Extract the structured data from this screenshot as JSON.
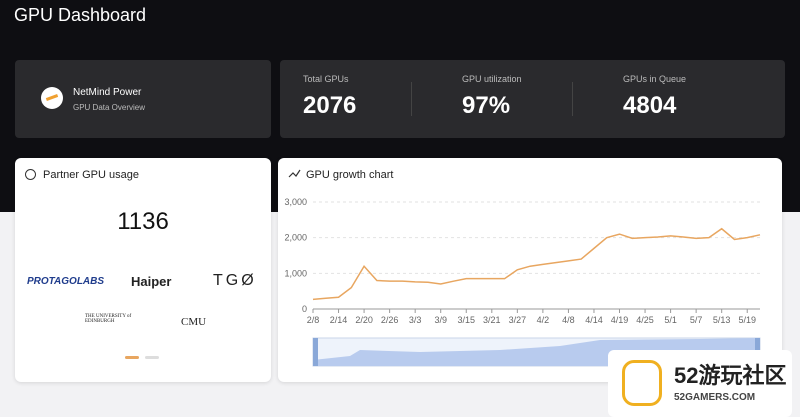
{
  "header": {
    "title": "GPU Dashboard"
  },
  "brand": {
    "name": "NetMind Power",
    "subtitle": "GPU Data Overview"
  },
  "stats": [
    {
      "label": "Total GPUs",
      "value": "2076"
    },
    {
      "label": "GPU utilization",
      "value": "97%"
    },
    {
      "label": "GPUs in Queue",
      "value": "4804"
    }
  ],
  "partner_usage": {
    "title": "Partner GPU usage",
    "total": "1136",
    "partners": [
      "PROTAGOLABS",
      "Haiper",
      "TGØ",
      "THE UNIVERSITY of EDINBURGH",
      "CMU"
    ]
  },
  "growth_chart": {
    "type": "line",
    "title": "GPU growth chart",
    "color": "#e8a660",
    "categories": [
      "2/8",
      null,
      "2/14",
      null,
      "2/20",
      null,
      "2/26",
      null,
      "3/3",
      null,
      "3/9",
      null,
      "3/15",
      null,
      "3/21",
      null,
      "3/27",
      null,
      "4/2",
      null,
      "4/8",
      null,
      "4/14",
      null,
      "4/19",
      null,
      "4/25",
      null,
      "5/1",
      null,
      "5/7",
      null,
      "5/13",
      null,
      "5/19",
      null
    ],
    "values": [
      270,
      300,
      330,
      600,
      1200,
      800,
      780,
      780,
      760,
      750,
      700,
      780,
      850,
      850,
      850,
      850,
      1100,
      1200,
      1250,
      1300,
      1350,
      1400,
      1700,
      2000,
      2100,
      1980,
      2000,
      2020,
      2050,
      2020,
      1980,
      2000,
      2250,
      1950,
      2000,
      2080
    ],
    "ylim": [
      0,
      3000
    ],
    "yticks": [
      0,
      {
        "value": 1000,
        "label": "1,000"
      },
      {
        "value": 2000,
        "label": "2,000"
      },
      {
        "value": 3000,
        "label": "3,000"
      }
    ],
    "grid": true
  },
  "watermark": {
    "brand": "52游玩社区",
    "site": "52GAMERS.COM"
  }
}
